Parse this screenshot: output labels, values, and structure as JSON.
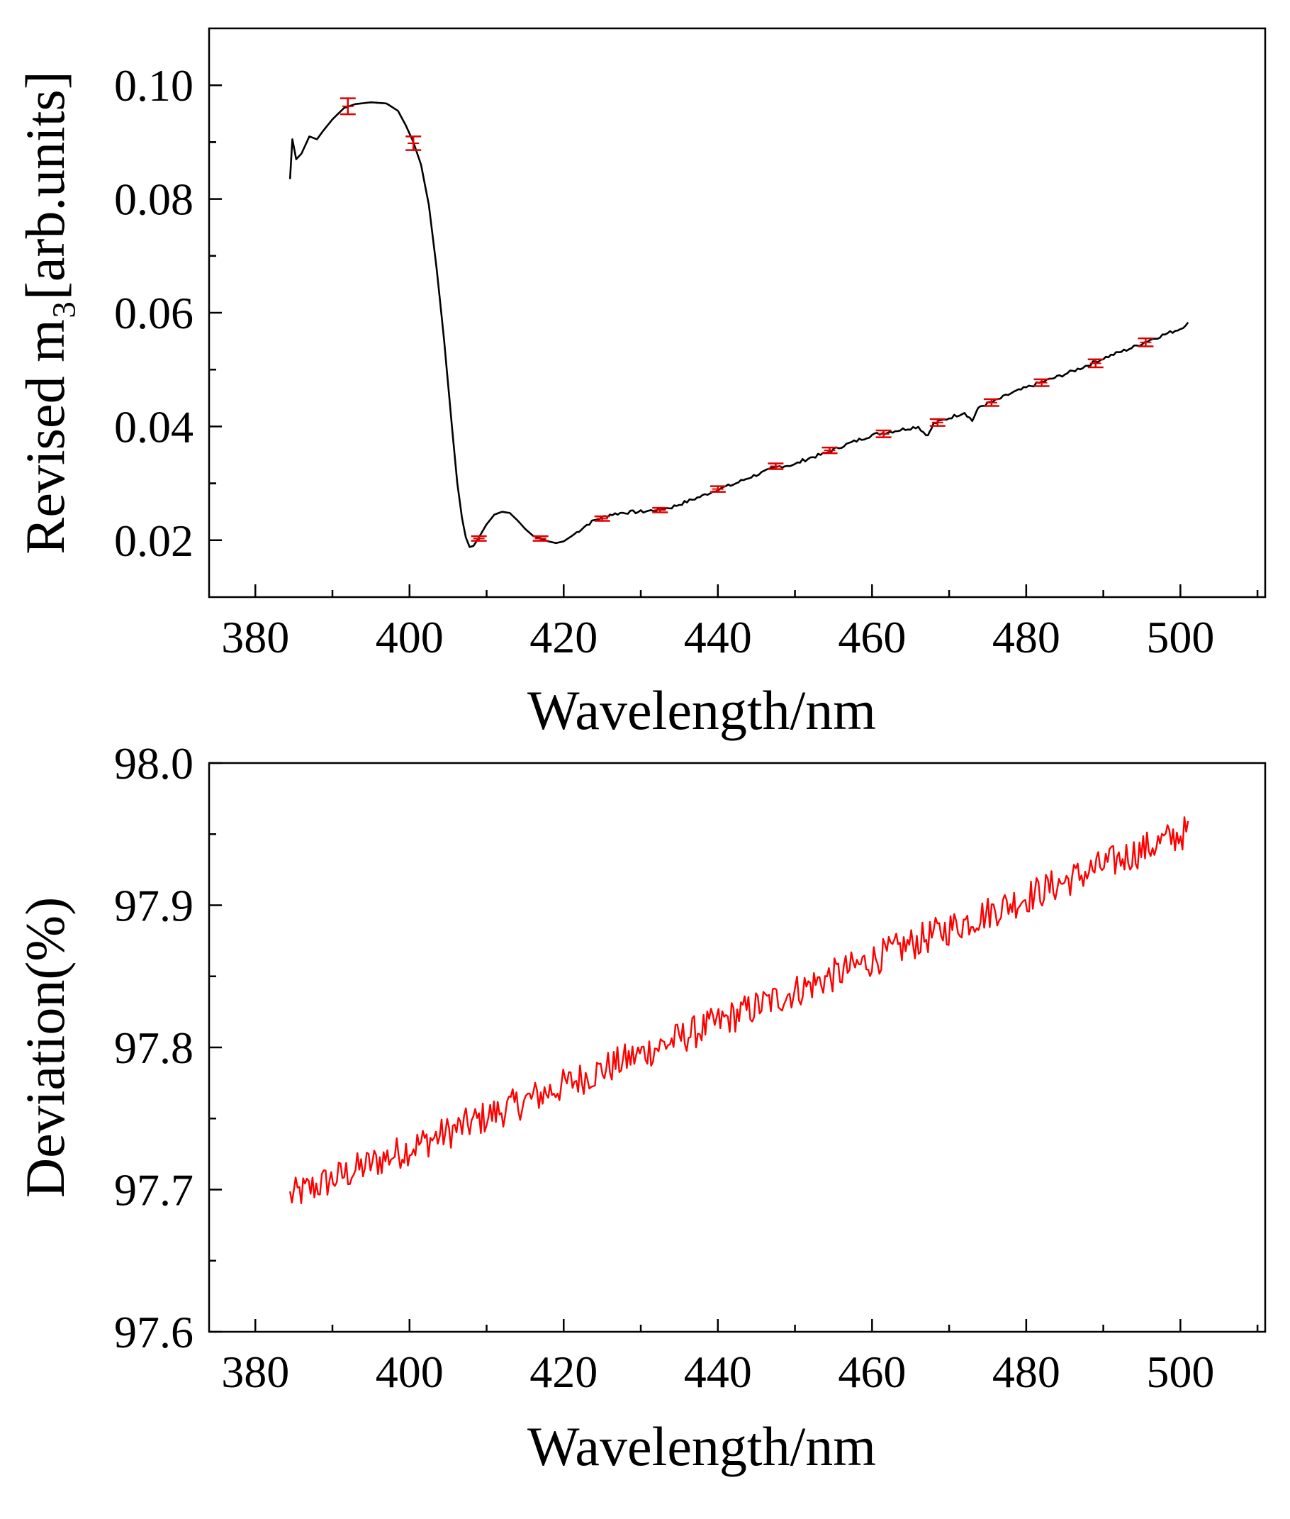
{
  "colors": {
    "top_line": "#000000",
    "error_bars": "#e00000",
    "bottom_line": "#ff0000",
    "axes": "#000000",
    "background": "#ffffff"
  },
  "chart_data": [
    {
      "type": "line",
      "id": "top",
      "title": "",
      "xlabel": "Wavelength/nm",
      "ylabel": "Revised  m₃[arb.units]",
      "xlim": [
        374,
        511
      ],
      "ylim": [
        0.01,
        0.11
      ],
      "xticks": [
        380,
        400,
        420,
        440,
        460,
        480,
        500
      ],
      "xtick_labels": [
        "380",
        "400",
        "420",
        "440",
        "460",
        "480",
        "500"
      ],
      "yticks": [
        0.02,
        0.04,
        0.06,
        0.08,
        0.1
      ],
      "ytick_labels": [
        "0.02",
        "0.04",
        "0.06",
        "0.08",
        "0.10"
      ],
      "grid": false,
      "legend": "none",
      "series": [
        {
          "name": "m3",
          "color": "#000000",
          "x": [
            384.5,
            384.8,
            385.3,
            386.0,
            387.0,
            388.0,
            388.8,
            390.0,
            391.5,
            393.0,
            395.0,
            397.0,
            398.5,
            399.5,
            400.5,
            401.5,
            402.5,
            403.5,
            404.5,
            405.5,
            406.2,
            406.8,
            407.3,
            407.8,
            408.3,
            409.0,
            410.0,
            411.0,
            412.0,
            413.0,
            414.0,
            415.0,
            416.0,
            417.0,
            418.0,
            419.0,
            420.0,
            421.0,
            422.0,
            423.0,
            424.0,
            425.0,
            426.0,
            428.0,
            430.0,
            432.0,
            434.0,
            436.0,
            438.0,
            440.0,
            442.0,
            444.0,
            446.0,
            448.0,
            450.0,
            451.0,
            452.0,
            454.0,
            456.0,
            458.0,
            460.0,
            462.0,
            464.0,
            466.0,
            467.0,
            467.5,
            468.0,
            470.0,
            472.0,
            473.0,
            473.5,
            474.0,
            476.0,
            478.0,
            480.0,
            482.0,
            484.0,
            486.0,
            488.0,
            490.0,
            492.0,
            494.0,
            496.0,
            498.0,
            500.0,
            501.0
          ],
          "y": [
            0.0835,
            0.0905,
            0.087,
            0.088,
            0.091,
            0.0905,
            0.092,
            0.094,
            0.096,
            0.0967,
            0.097,
            0.0968,
            0.0955,
            0.093,
            0.09,
            0.086,
            0.079,
            0.068,
            0.055,
            0.04,
            0.03,
            0.024,
            0.0205,
            0.0188,
            0.019,
            0.0205,
            0.0228,
            0.0245,
            0.025,
            0.0248,
            0.0235,
            0.022,
            0.0208,
            0.0203,
            0.0198,
            0.0195,
            0.0198,
            0.0207,
            0.0217,
            0.0227,
            0.0235,
            0.024,
            0.0245,
            0.0249,
            0.025,
            0.0253,
            0.0258,
            0.0268,
            0.0278,
            0.029,
            0.0298,
            0.031,
            0.032,
            0.033,
            0.0333,
            0.034,
            0.0345,
            0.0353,
            0.0365,
            0.0375,
            0.0385,
            0.039,
            0.0395,
            0.04,
            0.0385,
            0.039,
            0.0405,
            0.0415,
            0.0425,
            0.041,
            0.0425,
            0.0435,
            0.0445,
            0.0458,
            0.0468,
            0.0478,
            0.0487,
            0.0497,
            0.0508,
            0.052,
            0.053,
            0.054,
            0.0552,
            0.0562,
            0.0572,
            0.0583
          ]
        }
      ],
      "error_bars": {
        "color": "#e00000",
        "x": [
          392.0,
          400.5,
          409.0,
          417.0,
          425.0,
          432.5,
          440.0,
          447.5,
          454.5,
          461.5,
          468.5,
          475.5,
          482.0,
          489.0,
          495.5
        ],
        "y": [
          0.0963,
          0.0898,
          0.0203,
          0.0203,
          0.0238,
          0.0253,
          0.029,
          0.033,
          0.0358,
          0.0387,
          0.0407,
          0.0442,
          0.0477,
          0.0511,
          0.0548
        ],
        "err": [
          0.0014,
          0.0012,
          0.0004,
          0.0004,
          0.0004,
          0.0004,
          0.0005,
          0.0005,
          0.0005,
          0.0006,
          0.0006,
          0.0006,
          0.0006,
          0.0007,
          0.0007
        ]
      }
    },
    {
      "type": "line",
      "id": "bottom",
      "title": "",
      "xlabel": "Wavelength/nm",
      "ylabel": "Deviation(%)",
      "xlim": [
        374,
        511
      ],
      "ylim": [
        97.6,
        98.0
      ],
      "xticks": [
        380,
        400,
        420,
        440,
        460,
        480,
        500
      ],
      "xtick_labels": [
        "380",
        "400",
        "420",
        "440",
        "460",
        "480",
        "500"
      ],
      "yticks": [
        97.6,
        97.7,
        97.8,
        97.9,
        98.0
      ],
      "ytick_labels": [
        "97.6",
        "97.7",
        "97.8",
        "97.9",
        "98.0"
      ],
      "grid": false,
      "legend": "none",
      "series": [
        {
          "name": "deviation",
          "color": "#ff0000",
          "x_start": 384.5,
          "x_end": 501.0,
          "y_start": 97.695,
          "y_end": 97.952,
          "noise_amplitude": 0.012,
          "samples": 480,
          "notes": "noisy, approximately linear increase"
        }
      ]
    }
  ]
}
